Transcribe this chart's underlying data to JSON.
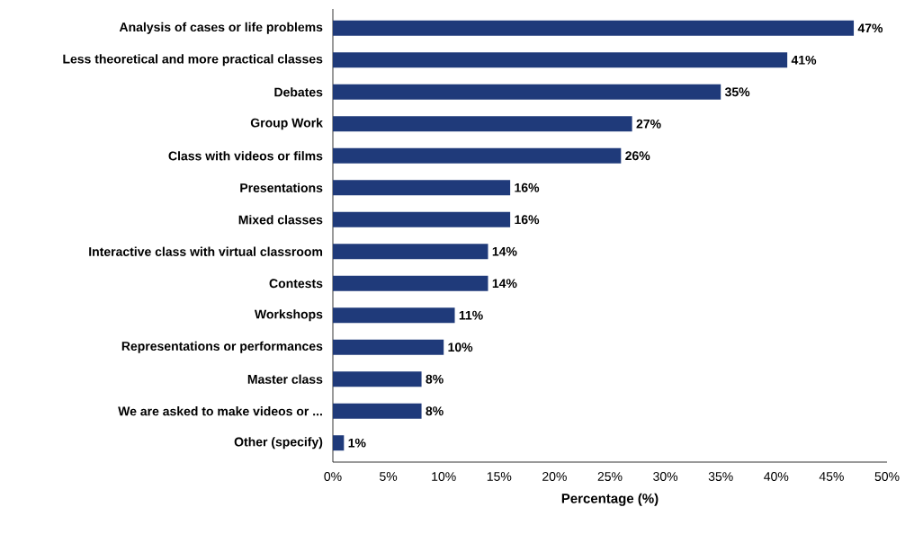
{
  "chart_data": {
    "type": "bar",
    "orientation": "horizontal",
    "xlabel": "Percentage (%)",
    "categories": [
      "Analysis of cases or life problems",
      "Less theoretical and more practical classes",
      "Debates",
      "Group Work",
      "Class with videos or films",
      "Presentations",
      "Mixed classes",
      "Interactive class with virtual classroom",
      "Contests",
      "Workshops",
      "Representations or performances",
      "Master class",
      "We are asked to make videos or ...",
      "Other (specify)"
    ],
    "values": [
      47,
      41,
      35,
      27,
      26,
      16,
      16,
      14,
      14,
      11,
      10,
      8,
      8,
      1
    ],
    "value_labels": [
      "47%",
      "41%",
      "35%",
      "27%",
      "26%",
      "16%",
      "16%",
      "14%",
      "14%",
      "11%",
      "10%",
      "8%",
      "8%",
      "1%"
    ],
    "color": "#1f3a7a",
    "xlim": [
      0,
      50
    ],
    "xticks": [
      {
        "value": 0,
        "label": "0%"
      },
      {
        "value": 5,
        "label": "5%"
      },
      {
        "value": 10,
        "label": "10%"
      },
      {
        "value": 15,
        "label": "15%"
      },
      {
        "value": 20,
        "label": "20%"
      },
      {
        "value": 25,
        "label": "25%"
      },
      {
        "value": 30,
        "label": "30%"
      },
      {
        "value": 35,
        "label": "35%"
      },
      {
        "value": 40,
        "label": "40%"
      },
      {
        "value": 45,
        "label": "45%"
      },
      {
        "value": 50,
        "label": "50%"
      }
    ]
  }
}
